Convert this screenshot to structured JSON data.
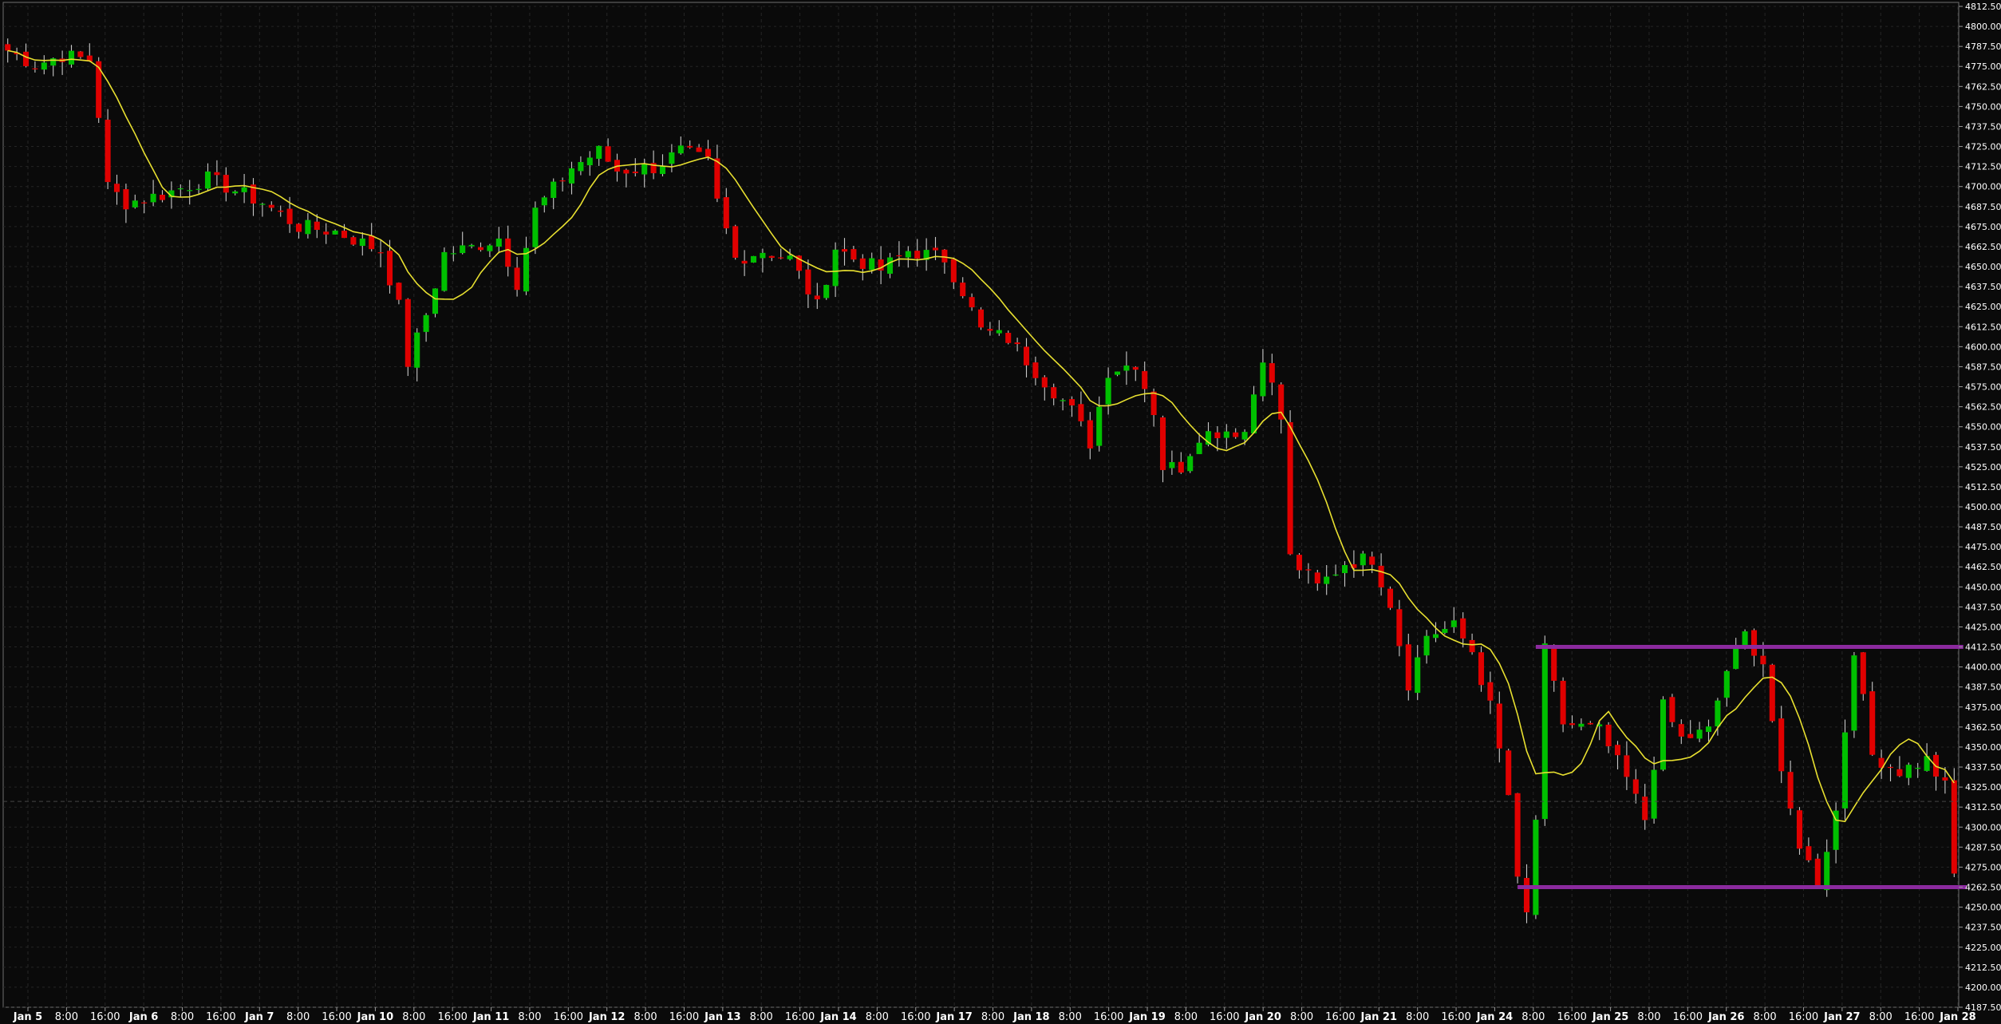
{
  "chart_data": {
    "type": "candlestick",
    "title": "",
    "xlabel": "",
    "ylabel": "",
    "ylim": [
      4187.5,
      4812.5
    ],
    "y_ticks": [
      4812.5,
      4800.0,
      4787.5,
      4775.0,
      4762.5,
      4750.0,
      4737.5,
      4725.0,
      4712.5,
      4700.0,
      4687.5,
      4675.0,
      4662.5,
      4650.0,
      4637.5,
      4625.0,
      4612.5,
      4600.0,
      4587.5,
      4575.0,
      4562.5,
      4550.0,
      4537.5,
      4525.0,
      4512.5,
      4500.0,
      4487.5,
      4475.0,
      4462.5,
      4450.0,
      4437.5,
      4425.0,
      4412.5,
      4400.0,
      4387.5,
      4375.0,
      4362.5,
      4350.0,
      4337.5,
      4325.0,
      4312.5,
      4300.0,
      4287.5,
      4275.0,
      4262.5,
      4250.0,
      4237.5,
      4225.0,
      4212.5,
      4200.0,
      4187.5
    ],
    "x_ticks": [
      {
        "label": "Jan 5",
        "bold": true
      },
      {
        "label": "8:00"
      },
      {
        "label": "16:00"
      },
      {
        "label": "Jan 6",
        "bold": true
      },
      {
        "label": "8:00"
      },
      {
        "label": "16:00"
      },
      {
        "label": "Jan 7",
        "bold": true
      },
      {
        "label": "8:00"
      },
      {
        "label": "16:00"
      },
      {
        "label": "Jan 10",
        "bold": true
      },
      {
        "label": "8:00"
      },
      {
        "label": "16:00"
      },
      {
        "label": "Jan 11",
        "bold": true
      },
      {
        "label": "8:00"
      },
      {
        "label": "16:00"
      },
      {
        "label": "Jan 12",
        "bold": true
      },
      {
        "label": "8:00"
      },
      {
        "label": "16:00"
      },
      {
        "label": "Jan 13",
        "bold": true
      },
      {
        "label": "8:00"
      },
      {
        "label": "16:00"
      },
      {
        "label": "Jan 14",
        "bold": true
      },
      {
        "label": "8:00"
      },
      {
        "label": "16:00"
      },
      {
        "label": "Jan 17",
        "bold": true
      },
      {
        "label": "8:00"
      },
      {
        "label": "Jan 18",
        "bold": true
      },
      {
        "label": "8:00"
      },
      {
        "label": "16:00"
      },
      {
        "label": "Jan 19",
        "bold": true
      },
      {
        "label": "8:00"
      },
      {
        "label": "16:00"
      },
      {
        "label": "Jan 20",
        "bold": true
      },
      {
        "label": "8:00"
      },
      {
        "label": "16:00"
      },
      {
        "label": "Jan 21",
        "bold": true
      },
      {
        "label": "8:00"
      },
      {
        "label": "16:00"
      },
      {
        "label": "Jan 24",
        "bold": true
      },
      {
        "label": "8:00"
      },
      {
        "label": "16:00"
      },
      {
        "label": "Jan 25",
        "bold": true
      },
      {
        "label": "8:00"
      },
      {
        "label": "16:00"
      },
      {
        "label": "Jan 26",
        "bold": true
      },
      {
        "label": "8:00"
      },
      {
        "label": "16:00"
      },
      {
        "label": "Jan 27",
        "bold": true
      },
      {
        "label": "8:00"
      },
      {
        "label": "16:00"
      },
      {
        "label": "Jan 28",
        "bold": true
      }
    ],
    "price_path": [
      [
        0,
        4785
      ],
      [
        3,
        4776
      ],
      [
        6,
        4782
      ],
      [
        9,
        4779
      ],
      [
        10,
        4745
      ],
      [
        11,
        4700
      ],
      [
        13,
        4690
      ],
      [
        17,
        4695
      ],
      [
        22,
        4705
      ],
      [
        28,
        4690
      ],
      [
        32,
        4675
      ],
      [
        36,
        4672
      ],
      [
        41,
        4660
      ],
      [
        43,
        4625
      ],
      [
        44,
        4590
      ],
      [
        46,
        4620
      ],
      [
        48,
        4658
      ],
      [
        51,
        4662
      ],
      [
        54,
        4668
      ],
      [
        56,
        4640
      ],
      [
        58,
        4685
      ],
      [
        62,
        4712
      ],
      [
        65,
        4722
      ],
      [
        67,
        4710
      ],
      [
        71,
        4712
      ],
      [
        74,
        4722
      ],
      [
        77,
        4715
      ],
      [
        78,
        4690
      ],
      [
        80,
        4655
      ],
      [
        83,
        4660
      ],
      [
        86,
        4655
      ],
      [
        89,
        4625
      ],
      [
        91,
        4662
      ],
      [
        93,
        4655
      ],
      [
        96,
        4648
      ],
      [
        99,
        4660
      ],
      [
        103,
        4655
      ],
      [
        105,
        4635
      ],
      [
        107,
        4610
      ],
      [
        110,
        4605
      ],
      [
        113,
        4585
      ],
      [
        117,
        4560
      ],
      [
        119,
        4540
      ],
      [
        121,
        4585
      ],
      [
        124,
        4590
      ],
      [
        126,
        4560
      ],
      [
        127,
        4525
      ],
      [
        129,
        4525
      ],
      [
        131,
        4545
      ],
      [
        134,
        4548
      ],
      [
        136,
        4547
      ],
      [
        138,
        4595
      ],
      [
        140,
        4555
      ],
      [
        141,
        4468
      ],
      [
        144,
        4450
      ],
      [
        147,
        4465
      ],
      [
        150,
        4468
      ],
      [
        152,
        4440
      ],
      [
        154,
        4390
      ],
      [
        156,
        4420
      ],
      [
        159,
        4425
      ],
      [
        161,
        4410
      ],
      [
        163,
        4375
      ],
      [
        165,
        4320
      ],
      [
        166,
        4265
      ],
      [
        167,
        4245
      ],
      [
        168,
        4305
      ],
      [
        169,
        4410
      ],
      [
        171,
        4365
      ],
      [
        175,
        4360
      ],
      [
        178,
        4330
      ],
      [
        180,
        4305
      ],
      [
        182,
        4375
      ],
      [
        184,
        4355
      ],
      [
        187,
        4360
      ],
      [
        189,
        4398
      ],
      [
        191,
        4420
      ],
      [
        193,
        4403
      ],
      [
        195,
        4330
      ],
      [
        197,
        4290
      ],
      [
        199,
        4265
      ],
      [
        201,
        4310
      ],
      [
        203,
        4412
      ],
      [
        205,
        4345
      ],
      [
        208,
        4335
      ],
      [
        211,
        4342
      ],
      [
        213,
        4325
      ],
      [
        214,
        4270
      ]
    ],
    "moving_average_color": "#e8e030",
    "bull_color": "#00c000",
    "bear_color": "#e00000",
    "wick_color": "#c8c8c8",
    "resistance_color": "#8b2a9e",
    "annotations": [
      {
        "type": "horizontal-line",
        "level": 4412.5,
        "from_x": 168,
        "to_x": 215
      },
      {
        "type": "horizontal-line",
        "level": 4262.5,
        "from_x": 166,
        "to_x": 216
      }
    ],
    "crosshair_level": 4316
  }
}
